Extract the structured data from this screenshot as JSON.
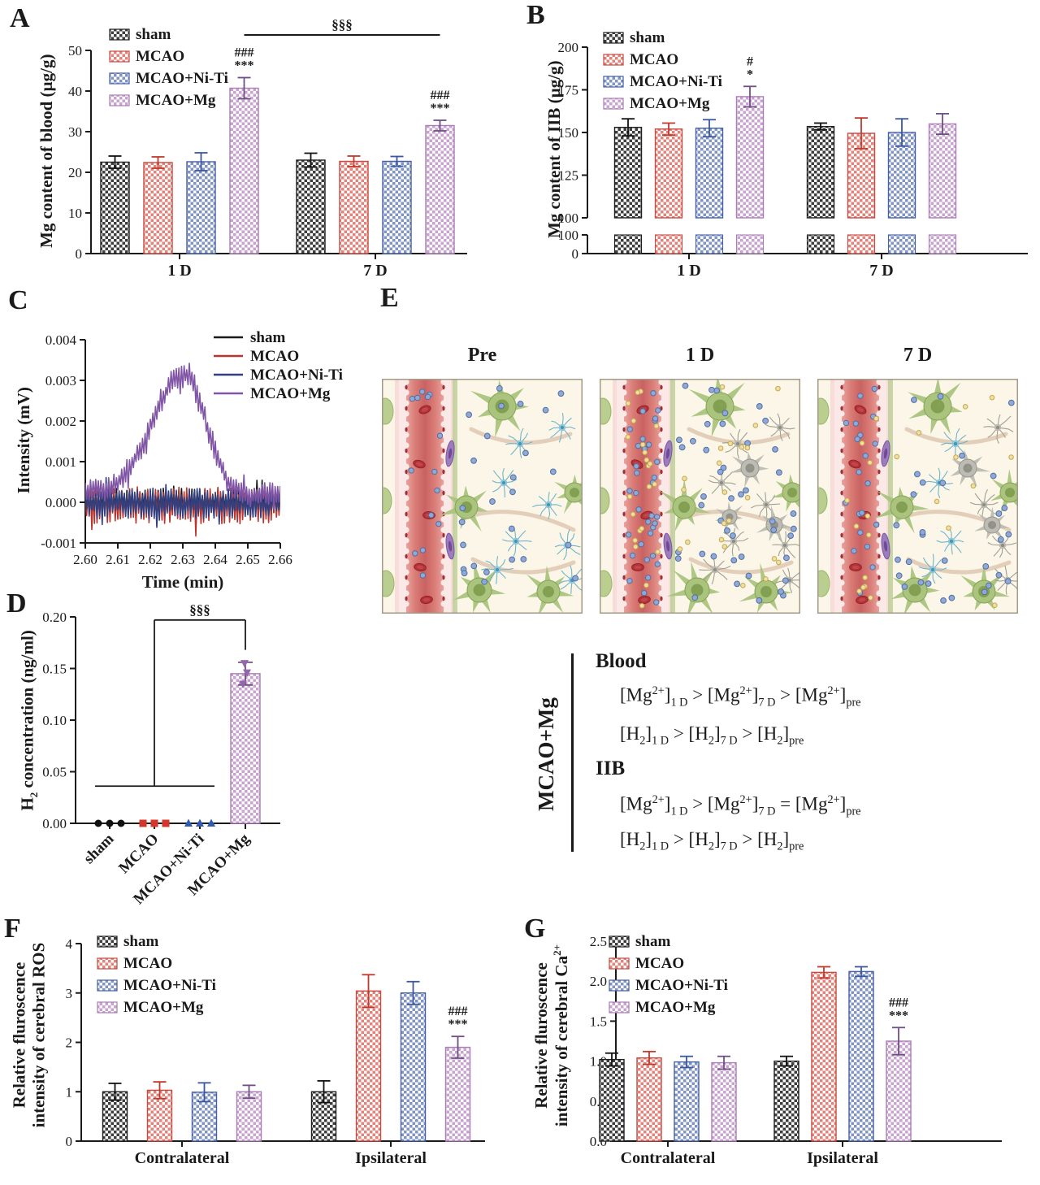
{
  "figure": {
    "background": "#ffffff"
  },
  "panel_letters": {
    "a": "A",
    "b": "B",
    "c": "C",
    "d": "D",
    "e": "E",
    "f": "F",
    "g": "G"
  },
  "groups": [
    "sham",
    "MCAO",
    "MCAO+Ni-Ti",
    "MCAO+Mg"
  ],
  "series_styles": [
    {
      "name": "sham",
      "fill": "#3d3d3d",
      "stroke": "#1f1f1f",
      "err": "#111111",
      "line": "#1a1a1a",
      "marker": "circle"
    },
    {
      "name": "MCAO",
      "fill": "#e2837b",
      "stroke": "#c94940",
      "err": "#c0392b",
      "line": "#b8342c",
      "marker": "square"
    },
    {
      "name": "MCAO+Ni-Ti",
      "fill": "#8094c4",
      "stroke": "#445fa5",
      "err": "#3a57a0",
      "line": "#303f80",
      "marker": "triangle-up"
    },
    {
      "name": "MCAO+Mg",
      "fill": "#c8a3cf",
      "stroke": "#ab7cb5",
      "err": "#6f4f85",
      "line": "#8055a5",
      "marker": "triangle-down"
    }
  ],
  "chart_data": [
    {
      "id": "A",
      "type": "bar",
      "ylabel": "Mg  content of blood (µg/g)",
      "ylim": [
        0,
        50
      ],
      "yticks": [
        0,
        10,
        20,
        30,
        40,
        50
      ],
      "categories": [
        "1 D",
        "7 D"
      ],
      "series": [
        {
          "name": "sham",
          "values": [
            22.5,
            23.0
          ],
          "errors": [
            1.5,
            1.7
          ]
        },
        {
          "name": "MCAO",
          "values": [
            22.4,
            22.7
          ],
          "errors": [
            1.4,
            1.3
          ]
        },
        {
          "name": "MCAO+Ni-Ti",
          "values": [
            22.6,
            22.7
          ],
          "errors": [
            2.2,
            1.2
          ]
        },
        {
          "name": "MCAO+Mg",
          "values": [
            40.7,
            31.5
          ],
          "errors": [
            2.6,
            1.3
          ]
        }
      ],
      "annotations": [
        {
          "cat": 0,
          "series": 3,
          "lines": [
            "###",
            "***"
          ]
        },
        {
          "cat": 1,
          "series": 3,
          "lines": [
            "###",
            "***"
          ]
        }
      ],
      "bracket": {
        "label": "§§§",
        "from": {
          "cat": 0,
          "series": 3
        },
        "to": {
          "cat": 1,
          "series": 3
        },
        "y_value": 53.8
      },
      "legend_position": "top-left"
    },
    {
      "id": "B",
      "type": "bar-broken-axis",
      "ylabel": "Mg  content of IIB (µg/g)",
      "axis_segments": [
        {
          "range": [
            100,
            200
          ],
          "ticks": [
            100,
            125,
            150,
            175,
            200
          ]
        },
        {
          "range": [
            0,
            100
          ],
          "ticks": [
            0,
            100
          ]
        }
      ],
      "categories": [
        "1 D",
        "7 D"
      ],
      "series": [
        {
          "name": "sham",
          "values": [
            153.0,
            153.5
          ],
          "errors": [
            5.0,
            2.0
          ]
        },
        {
          "name": "MCAO",
          "values": [
            152.0,
            149.5
          ],
          "errors": [
            3.5,
            9.0
          ]
        },
        {
          "name": "MCAO+Ni-Ti",
          "values": [
            152.5,
            150.0
          ],
          "errors": [
            5.0,
            8.0
          ]
        },
        {
          "name": "MCAO+Mg",
          "values": [
            171.0,
            155.0
          ],
          "errors": [
            6.0,
            6.0
          ]
        }
      ],
      "annotations": [
        {
          "cat": 0,
          "series": 3,
          "lines": [
            "#",
            "*"
          ]
        }
      ],
      "legend_position": "top-left"
    },
    {
      "id": "C",
      "type": "line",
      "xlabel": "Time (min)",
      "ylabel": "Intensity (mV)",
      "xlim": [
        2.6,
        2.66
      ],
      "xticks": [
        "2.60",
        "2.61",
        "2.62",
        "2.63",
        "2.64",
        "2.65",
        "2.66"
      ],
      "ylim": [
        -0.001,
        0.004
      ],
      "yticks": [
        "-0.001",
        "0.000",
        "0.001",
        "0.002",
        "0.003",
        "0.004"
      ],
      "series": [
        {
          "name": "sham",
          "baseline_noise_mV": 0.00032,
          "mean_mV": 3e-05
        },
        {
          "name": "MCAO",
          "baseline_noise_mV": 0.00045,
          "mean_mV": -8e-05
        },
        {
          "name": "MCAO+Ni-Ti",
          "baseline_noise_mV": 0.00038,
          "mean_mV": -3e-05
        },
        {
          "name": "MCAO+Mg",
          "baseline_noise_mV": 0.0003,
          "mean_mV": 5e-05,
          "peak_envelope_x_mV": [
            [
              2.6,
              0.0002
            ],
            [
              2.608,
              0.0003
            ],
            [
              2.612,
              0.0006
            ],
            [
              2.618,
              0.0014
            ],
            [
              2.623,
              0.0024
            ],
            [
              2.627,
              0.003
            ],
            [
              2.632,
              0.0031
            ],
            [
              2.636,
              0.0022
            ],
            [
              2.64,
              0.0012
            ],
            [
              2.644,
              0.0004
            ],
            [
              2.65,
              0.0001
            ],
            [
              2.66,
              0.0002
            ]
          ]
        }
      ],
      "legend_position": "top-right"
    },
    {
      "id": "D",
      "type": "bar-scatter",
      "ylabel": "H_{2} concentration (ng/ml)",
      "ylim": [
        0,
        0.2
      ],
      "yticks": [
        "0.00",
        "0.05",
        "0.10",
        "0.15",
        "0.20"
      ],
      "categories": [
        "sham",
        "MCAO",
        "MCAO+Ni-Ti",
        "MCAO+Mg"
      ],
      "points": [
        [
          0,
          0,
          0
        ],
        [
          0,
          0,
          0
        ],
        [
          0,
          0,
          0
        ],
        [
          0.135,
          0.146,
          0.155
        ]
      ],
      "bars": [
        null,
        null,
        null,
        {
          "value": 0.145,
          "error": 0.011
        }
      ],
      "bracket": {
        "label": "§§§",
        "baseline_span": {
          "from_cat": 0,
          "to_cat": 2,
          "y_value": 0.036
        },
        "riser_cat": 1,
        "top_y_value": 0.197,
        "to_cat": 3,
        "drop_to_y_value": 0.168
      }
    },
    {
      "id": "F",
      "type": "bar",
      "ylabel_lines": [
        "Relative fluroscence",
        "intensity of cerebral ROS"
      ],
      "ylim": [
        0,
        4
      ],
      "yticks": [
        0,
        1,
        2,
        3,
        4
      ],
      "categories": [
        "Contralateral",
        "Ipsilateral"
      ],
      "series": [
        {
          "name": "sham",
          "values": [
            1.0,
            1.0
          ],
          "errors": [
            0.17,
            0.22
          ]
        },
        {
          "name": "MCAO",
          "values": [
            1.03,
            3.04
          ],
          "errors": [
            0.17,
            0.33
          ]
        },
        {
          "name": "MCAO+Ni-Ti",
          "values": [
            0.99,
            3.0
          ],
          "errors": [
            0.19,
            0.23
          ]
        },
        {
          "name": "MCAO+Mg",
          "values": [
            1.0,
            1.9
          ],
          "errors": [
            0.13,
            0.22
          ]
        }
      ],
      "annotations": [
        {
          "cat": 1,
          "series": 3,
          "lines": [
            "###",
            "***"
          ]
        }
      ],
      "legend_position": "top-left"
    },
    {
      "id": "G",
      "type": "bar",
      "ylabel_lines": [
        "Relative fluroscence",
        "intensity of cerebral Ca^{2+}"
      ],
      "ylim": [
        0,
        2.5
      ],
      "yticks": [
        "0.0",
        "0.5",
        "1.0",
        "1.5",
        "2.0",
        "2.5"
      ],
      "categories": [
        "Contralateral",
        "Ipsilateral"
      ],
      "series": [
        {
          "name": "sham",
          "values": [
            1.02,
            1.0
          ],
          "errors": [
            0.08,
            0.06
          ]
        },
        {
          "name": "MCAO",
          "values": [
            1.04,
            2.11
          ],
          "errors": [
            0.08,
            0.07
          ]
        },
        {
          "name": "MCAO+Ni-Ti",
          "values": [
            0.99,
            2.12
          ],
          "errors": [
            0.07,
            0.06
          ]
        },
        {
          "name": "MCAO+Mg",
          "values": [
            0.98,
            1.25
          ],
          "errors": [
            0.08,
            0.17
          ]
        }
      ],
      "annotations": [
        {
          "cat": 1,
          "series": 3,
          "lines": [
            "###",
            "***"
          ]
        }
      ],
      "legend_position": "top-left"
    }
  ],
  "illustration": {
    "letter": "E",
    "panels": [
      {
        "title": "Pre",
        "vessel_blue_dots": 14,
        "vessel_yellow_dots": 0,
        "tissue_blue_dots": 26,
        "tissue_yellow_dots": 0,
        "microglia": "blue",
        "gray_neurons": 0
      },
      {
        "title": "1 D",
        "vessel_blue_dots": 34,
        "vessel_yellow_dots": 22,
        "tissue_blue_dots": 44,
        "tissue_yellow_dots": 22,
        "microglia": "gray",
        "gray_neurons": 3
      },
      {
        "title": "7 D",
        "vessel_blue_dots": 20,
        "vessel_yellow_dots": 12,
        "tissue_blue_dots": 30,
        "tissue_yellow_dots": 10,
        "microglia": "mixed",
        "gray_neurons": 2
      }
    ],
    "art_colors": {
      "box_bg": "#fbf6e7",
      "box_border": "#a39a87",
      "wall": "#f7dcda",
      "wall_inner": "#fae9e7",
      "lumen_edge": "#e9a19c",
      "lumen_mid": "#c96262",
      "rbc": "#b13136",
      "rbc_stroke": "#8e2026",
      "pericyte": "#9d7cbe",
      "pericyte_dark": "#6f4b96",
      "astro_band": "#bed09a",
      "neuron_green": "#aac47e",
      "neuron_green_stroke": "#85a355",
      "neuron_gray": "#bcbcb4",
      "microglia_blue": "#8cc6da",
      "microglia_gray": "#b9b9b0",
      "process_tan": "#d4b49b",
      "ion_blue": "#8fa8d8",
      "ion_blue_stroke": "#51709f",
      "ion_yellow": "#f0df9e",
      "ion_yellow_stroke": "#c4a953"
    },
    "caption": {
      "side_label": "MCAO+Mg",
      "sections": [
        {
          "heading": "Blood",
          "lines": [
            "[Mg^{2+}]_{1 D} > [Mg^{2+}]_{7 D} > [Mg^{2+}]_{pre}",
            "[H_{2}]_{1 D} > [H_{2}]_{7 D} > [H_{2}]_{pre}"
          ]
        },
        {
          "heading": "IIB",
          "lines": [
            "[Mg^{2+}]_{1 D} > [Mg^{2+}]_{7 D} = [Mg^{2+}]_{pre}",
            "[H_{2}]_{1 D} > [H_{2}]_{7 D} > [H_{2}]_{pre}"
          ]
        }
      ]
    }
  }
}
